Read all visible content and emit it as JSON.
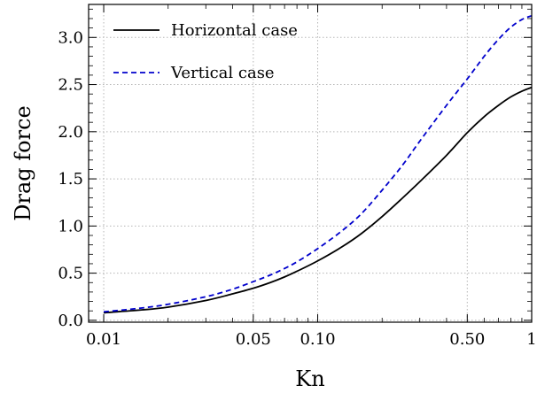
{
  "chart_data": {
    "type": "line",
    "xlabel": "Kn",
    "ylabel": "Drag force",
    "x_scale": "log",
    "xlim": [
      0.0085,
      1.0
    ],
    "ylim": [
      -0.02,
      3.35
    ],
    "grid": true,
    "legend_position": "top-left",
    "x_ticks": [
      {
        "value": 0.01,
        "label": "0.01"
      },
      {
        "value": 0.05,
        "label": "0.05"
      },
      {
        "value": 0.1,
        "label": "0.10"
      },
      {
        "value": 0.5,
        "label": "0.50"
      },
      {
        "value": 1.0,
        "label": "1"
      }
    ],
    "x_minor_ticks": [
      0.02,
      0.03,
      0.04,
      0.06,
      0.07,
      0.08,
      0.09,
      0.2,
      0.3,
      0.4,
      0.6,
      0.7,
      0.8,
      0.9
    ],
    "y_ticks": [
      {
        "value": 0.0,
        "label": "0.0"
      },
      {
        "value": 0.5,
        "label": "0.5"
      },
      {
        "value": 1.0,
        "label": "1.0"
      },
      {
        "value": 1.5,
        "label": "1.5"
      },
      {
        "value": 2.0,
        "label": "2.0"
      },
      {
        "value": 2.5,
        "label": "2.5"
      },
      {
        "value": 3.0,
        "label": "3.0"
      }
    ],
    "series": [
      {
        "name": "Horizontal case",
        "color": "#000000",
        "dash": "solid",
        "x": [
          0.01,
          0.015,
          0.02,
          0.03,
          0.04,
          0.05,
          0.06,
          0.07,
          0.08,
          0.1,
          0.13,
          0.16,
          0.2,
          0.25,
          0.3,
          0.4,
          0.5,
          0.6,
          0.7,
          0.8,
          0.9,
          1.0
        ],
        "y": [
          0.08,
          0.11,
          0.14,
          0.21,
          0.28,
          0.34,
          0.4,
          0.46,
          0.52,
          0.63,
          0.78,
          0.92,
          1.1,
          1.3,
          1.47,
          1.75,
          1.99,
          2.16,
          2.28,
          2.37,
          2.43,
          2.47
        ]
      },
      {
        "name": "Vertical case",
        "color": "#0000cc",
        "dash": "dashed",
        "x": [
          0.01,
          0.015,
          0.02,
          0.03,
          0.04,
          0.05,
          0.06,
          0.07,
          0.08,
          0.1,
          0.13,
          0.16,
          0.2,
          0.25,
          0.3,
          0.4,
          0.5,
          0.6,
          0.7,
          0.8,
          0.9,
          1.0
        ],
        "y": [
          0.09,
          0.13,
          0.17,
          0.25,
          0.33,
          0.41,
          0.48,
          0.55,
          0.62,
          0.76,
          0.95,
          1.13,
          1.38,
          1.65,
          1.9,
          2.28,
          2.56,
          2.8,
          2.98,
          3.11,
          3.19,
          3.23
        ]
      }
    ]
  }
}
